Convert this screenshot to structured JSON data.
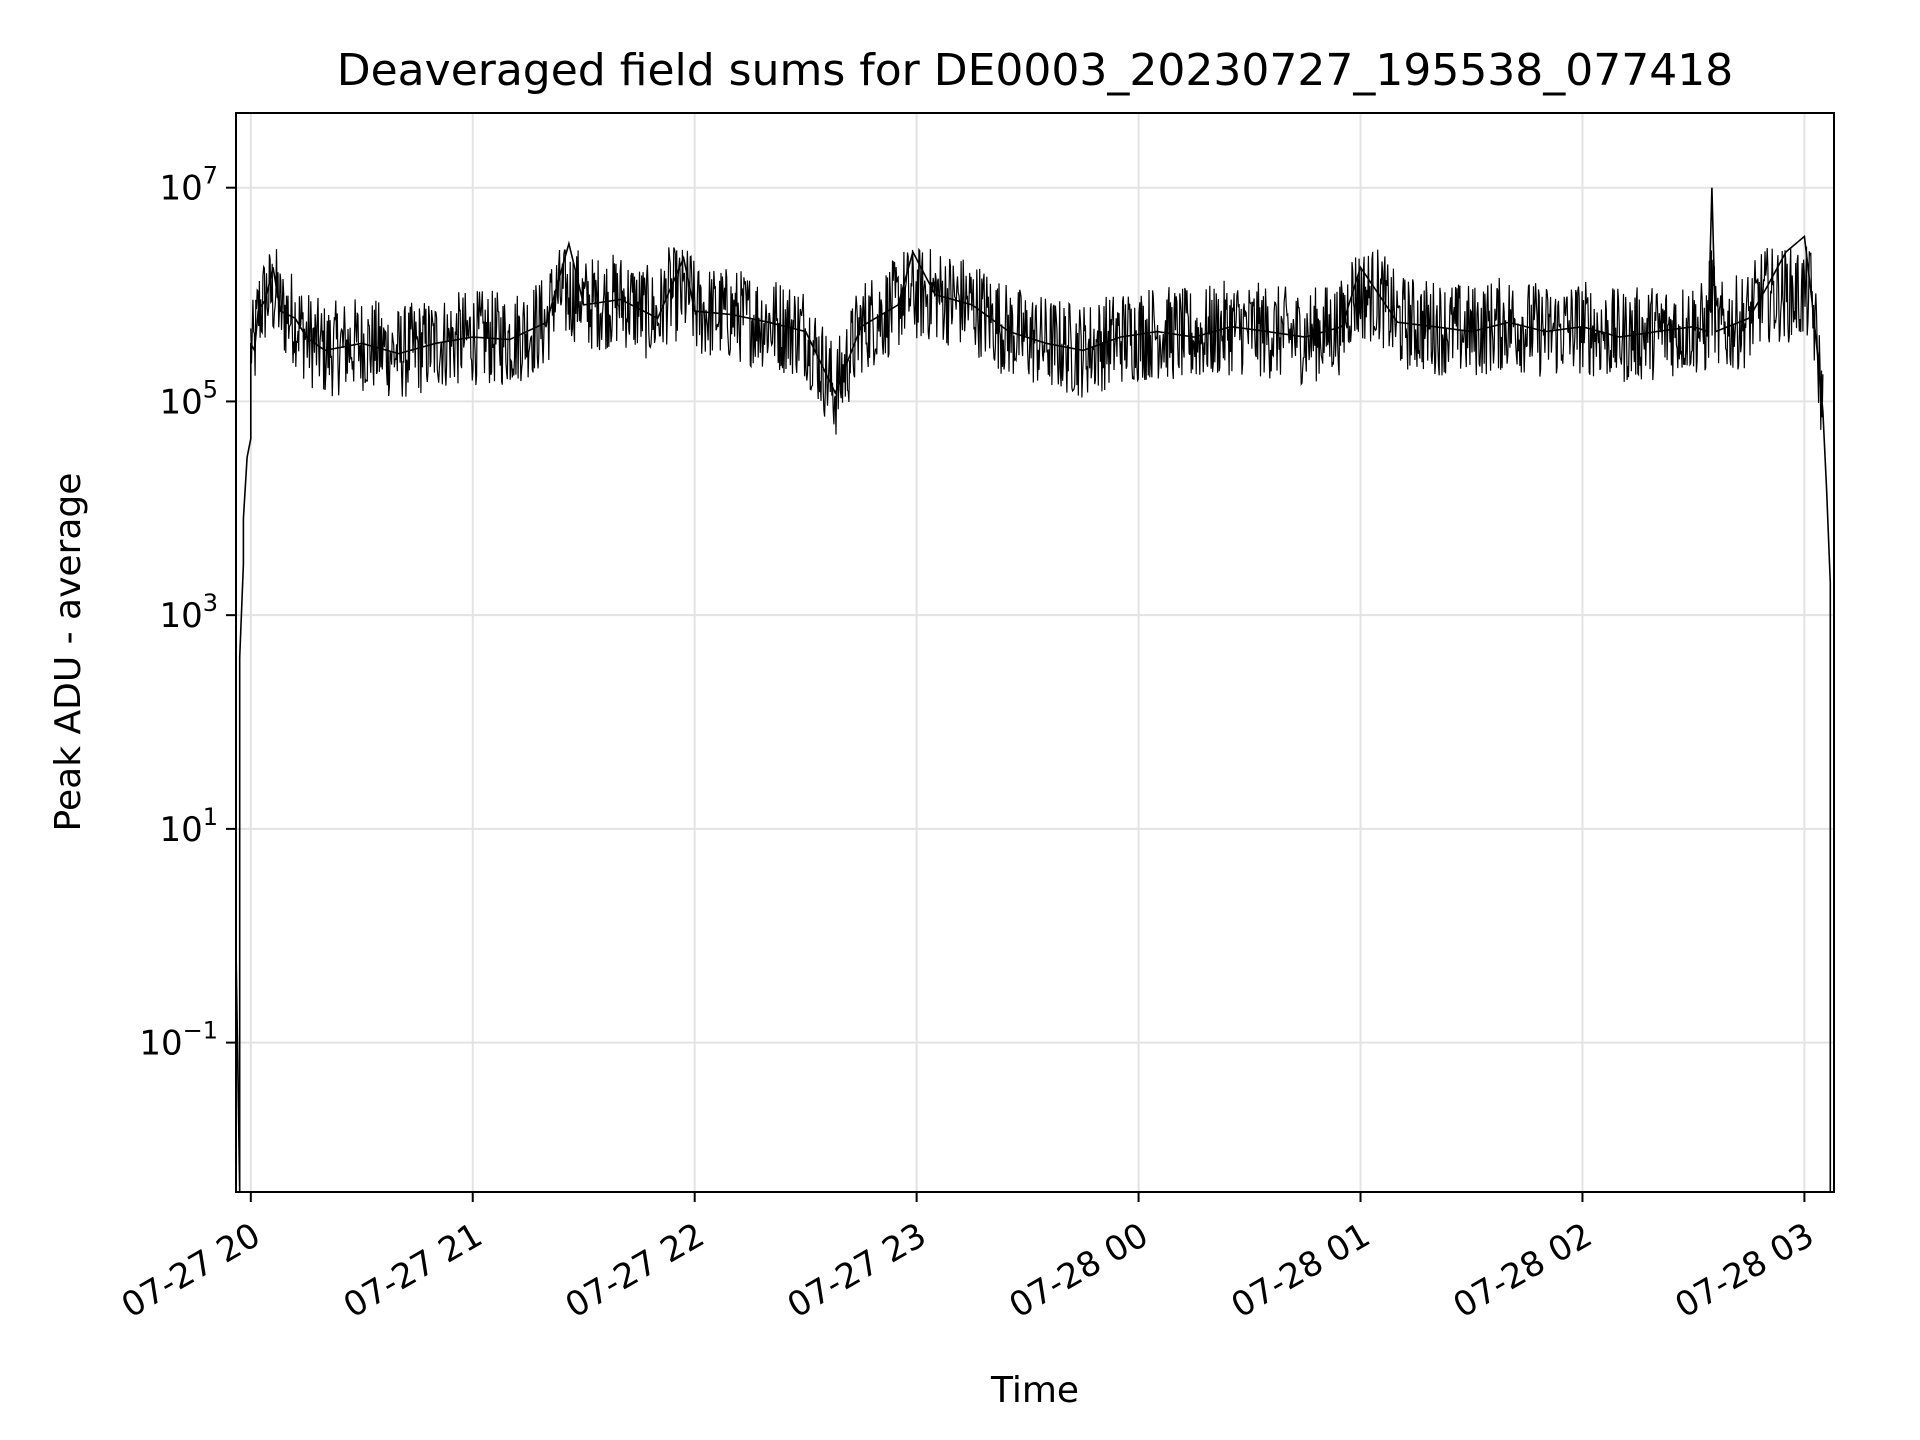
{
  "chart_data": {
    "type": "line",
    "title": "Deaveraged field sums for DE0003_20230727_195538_077418",
    "xlabel": "Time",
    "ylabel": "Peak ADU - average",
    "y_scale": "log",
    "grid": true,
    "ylim": [
      0.004,
      50000000
    ],
    "xlim": [
      "2023-07-27 19:56",
      "2023-07-28 03:08"
    ],
    "x_ticks": [
      {
        "value": "2023-07-27 20:00",
        "label": "07-27 20"
      },
      {
        "value": "2023-07-27 21:00",
        "label": "07-27 21"
      },
      {
        "value": "2023-07-27 22:00",
        "label": "07-27 22"
      },
      {
        "value": "2023-07-27 23:00",
        "label": "07-27 23"
      },
      {
        "value": "2023-07-28 00:00",
        "label": "07-28 00"
      },
      {
        "value": "2023-07-28 01:00",
        "label": "07-28 01"
      },
      {
        "value": "2023-07-28 02:00",
        "label": "07-28 02"
      },
      {
        "value": "2023-07-28 03:00",
        "label": "07-28 03"
      }
    ],
    "y_ticks": [
      {
        "value": 0.1,
        "base": "10",
        "exp": "−1"
      },
      {
        "value": 10,
        "base": "10",
        "exp": "1"
      },
      {
        "value": 1000,
        "base": "10",
        "exp": "3"
      },
      {
        "value": 100000,
        "base": "10",
        "exp": "5"
      },
      {
        "value": 10000000,
        "base": "10",
        "exp": "7"
      }
    ],
    "series": [
      {
        "color": "#000000",
        "points": [
          [
            "2023-07-27 19:56",
            0.004
          ],
          [
            "2023-07-27 19:56",
            0.8
          ],
          [
            "2023-07-27 19:57",
            0.004
          ],
          [
            "2023-07-27 19:57",
            60
          ],
          [
            "2023-07-27 19:57",
            400
          ],
          [
            "2023-07-27 19:58",
            3000
          ],
          [
            "2023-07-27 19:58",
            8000
          ],
          [
            "2023-07-27 19:59",
            30000
          ],
          [
            "2023-07-27 20:00",
            45000
          ],
          [
            "2023-07-27 20:00",
            350000
          ],
          [
            "2023-07-27 20:01",
            300000
          ],
          [
            "2023-07-27 20:02",
            700000
          ],
          [
            "2023-07-27 20:04",
            900000
          ],
          [
            "2023-07-27 20:06",
            1800000
          ],
          [
            "2023-07-27 20:08",
            700000
          ],
          [
            "2023-07-27 20:12",
            600000
          ],
          [
            "2023-07-27 20:15",
            400000
          ],
          [
            "2023-07-27 20:20",
            300000
          ],
          [
            "2023-07-27 20:30",
            350000
          ],
          [
            "2023-07-27 20:40",
            280000
          ],
          [
            "2023-07-27 20:50",
            350000
          ],
          [
            "2023-07-27 21:00",
            400000
          ],
          [
            "2023-07-27 21:10",
            380000
          ],
          [
            "2023-07-27 21:20",
            550000
          ],
          [
            "2023-07-27 21:26",
            3000000
          ],
          [
            "2023-07-27 21:30",
            800000
          ],
          [
            "2023-07-27 21:40",
            900000
          ],
          [
            "2023-07-27 21:50",
            600000
          ],
          [
            "2023-07-27 21:57",
            2200000
          ],
          [
            "2023-07-27 22:00",
            700000
          ],
          [
            "2023-07-27 22:10",
            650000
          ],
          [
            "2023-07-27 22:20",
            550000
          ],
          [
            "2023-07-27 22:30",
            450000
          ],
          [
            "2023-07-27 22:38",
            120000
          ],
          [
            "2023-07-27 22:45",
            500000
          ],
          [
            "2023-07-27 22:55",
            800000
          ],
          [
            "2023-07-27 22:59",
            2500000
          ],
          [
            "2023-07-27 23:05",
            1000000
          ],
          [
            "2023-07-27 23:15",
            800000
          ],
          [
            "2023-07-27 23:25",
            450000
          ],
          [
            "2023-07-27 23:35",
            350000
          ],
          [
            "2023-07-27 23:45",
            300000
          ],
          [
            "2023-07-27 23:55",
            400000
          ],
          [
            "2023-07-28 00:05",
            450000
          ],
          [
            "2023-07-28 00:15",
            400000
          ],
          [
            "2023-07-28 00:25",
            500000
          ],
          [
            "2023-07-28 00:35",
            450000
          ],
          [
            "2023-07-28 00:45",
            400000
          ],
          [
            "2023-07-28 00:55",
            500000
          ],
          [
            "2023-07-28 01:00",
            1800000
          ],
          [
            "2023-07-28 01:10",
            550000
          ],
          [
            "2023-07-28 01:20",
            500000
          ],
          [
            "2023-07-28 01:30",
            450000
          ],
          [
            "2023-07-28 01:40",
            550000
          ],
          [
            "2023-07-28 01:50",
            450000
          ],
          [
            "2023-07-28 02:00",
            500000
          ],
          [
            "2023-07-28 02:10",
            400000
          ],
          [
            "2023-07-28 02:20",
            450000
          ],
          [
            "2023-07-28 02:30",
            500000
          ],
          [
            "2023-07-28 02:34",
            450000
          ],
          [
            "2023-07-28 02:35",
            10000000
          ],
          [
            "2023-07-28 02:36",
            450000
          ],
          [
            "2023-07-28 02:45",
            600000
          ],
          [
            "2023-07-28 02:50",
            1200000
          ],
          [
            "2023-07-28 02:55",
            2500000
          ],
          [
            "2023-07-28 03:00",
            3500000
          ],
          [
            "2023-07-28 03:02",
            900000
          ],
          [
            "2023-07-28 03:04",
            200000
          ],
          [
            "2023-07-28 03:05",
            80000
          ],
          [
            "2023-07-28 03:06",
            15000
          ],
          [
            "2023-07-28 03:07",
            2000
          ],
          [
            "2023-07-28 03:07",
            0.004
          ]
        ]
      }
    ]
  }
}
